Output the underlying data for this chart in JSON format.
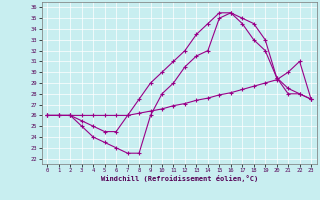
{
  "xlabel": "Windchill (Refroidissement éolien,°C)",
  "bg_color": "#c8eef0",
  "line_color": "#990088",
  "grid_color": "#ffffff",
  "xlim": [
    -0.5,
    23.5
  ],
  "ylim": [
    21.5,
    36.5
  ],
  "xticks": [
    0,
    1,
    2,
    3,
    4,
    5,
    6,
    7,
    8,
    9,
    10,
    11,
    12,
    13,
    14,
    15,
    16,
    17,
    18,
    19,
    20,
    21,
    22,
    23
  ],
  "yticks": [
    22,
    23,
    24,
    25,
    26,
    27,
    28,
    29,
    30,
    31,
    32,
    33,
    34,
    35,
    36
  ],
  "line1_x": [
    0,
    1,
    2,
    3,
    4,
    5,
    6,
    7,
    8,
    9,
    10,
    11,
    12,
    13,
    14,
    15,
    16,
    17,
    18,
    19,
    20,
    21,
    22,
    23
  ],
  "line1_y": [
    26,
    26,
    26,
    25.5,
    25,
    24.5,
    24.5,
    26,
    27.5,
    29,
    30,
    31,
    32,
    33.5,
    34.5,
    35.5,
    35.5,
    35,
    34.5,
    33,
    29.5,
    28,
    28,
    27.5
  ],
  "line2_x": [
    0,
    1,
    2,
    3,
    4,
    5,
    6,
    7,
    8,
    9,
    10,
    11,
    12,
    13,
    14,
    15,
    16,
    17,
    18,
    19,
    20,
    21,
    22,
    23
  ],
  "line2_y": [
    26,
    26,
    26,
    25,
    24,
    23.5,
    23,
    22.5,
    22.5,
    26,
    28,
    29,
    30.5,
    31.5,
    32,
    35,
    35.5,
    34.5,
    33,
    32,
    29.5,
    28.5,
    28,
    27.5
  ],
  "line3_x": [
    0,
    1,
    2,
    3,
    4,
    5,
    6,
    7,
    8,
    9,
    10,
    11,
    12,
    13,
    14,
    15,
    16,
    17,
    18,
    19,
    20,
    21,
    22,
    23
  ],
  "line3_y": [
    26,
    26,
    26,
    26,
    26,
    26,
    26,
    26,
    26.2,
    26.4,
    26.6,
    26.9,
    27.1,
    27.4,
    27.6,
    27.9,
    28.1,
    28.4,
    28.7,
    29.0,
    29.3,
    30,
    31,
    27.5
  ]
}
